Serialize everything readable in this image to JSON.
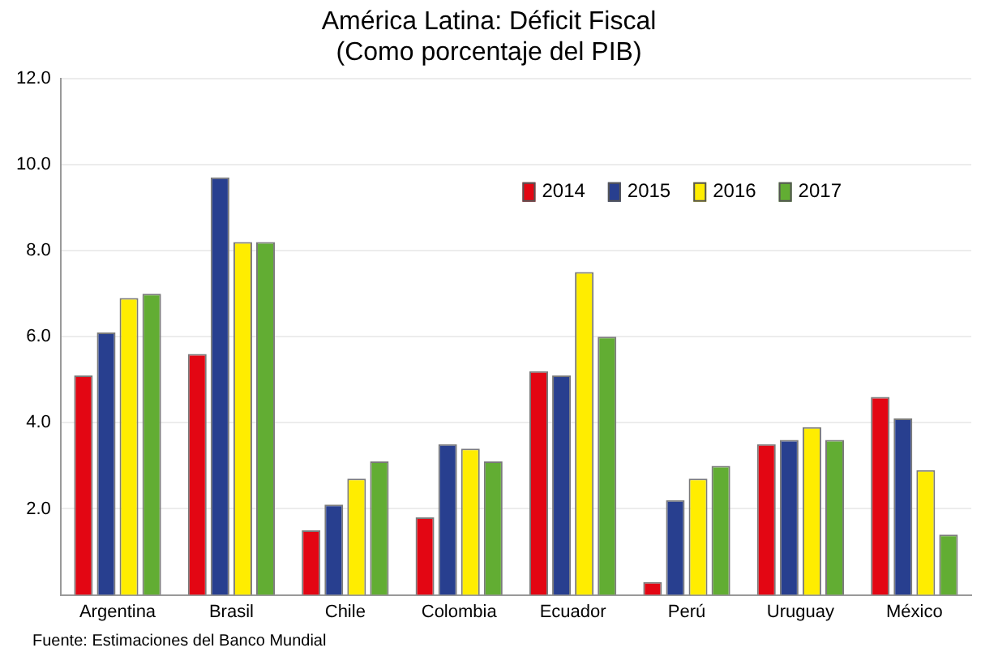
{
  "chart_data": {
    "type": "bar",
    "title": "América Latina: Déficit Fiscal",
    "subtitle": "(Como porcentaje del PIB)",
    "categories": [
      "Argentina",
      "Brasil",
      "Chile",
      "Colombia",
      "Ecuador",
      "Perú",
      "Uruguay",
      "México"
    ],
    "series": [
      {
        "name": "2014",
        "color": "#e30613",
        "values": [
          5.1,
          5.6,
          1.5,
          1.8,
          5.2,
          0.3,
          3.5,
          4.6
        ]
      },
      {
        "name": "2015",
        "color": "#283f8f",
        "values": [
          6.1,
          9.7,
          2.1,
          3.5,
          5.1,
          2.2,
          3.6,
          4.1
        ]
      },
      {
        "name": "2016",
        "color": "#ffed00",
        "values": [
          6.9,
          8.2,
          2.7,
          3.4,
          7.5,
          2.7,
          3.9,
          2.9
        ]
      },
      {
        "name": "2017",
        "color": "#62ad33",
        "values": [
          7.0,
          8.2,
          3.1,
          3.1,
          6.0,
          3.0,
          3.6,
          1.4
        ]
      }
    ],
    "ylim": [
      0,
      12
    ],
    "yticks": [
      {
        "value": 2,
        "label": "2.0"
      },
      {
        "value": 4,
        "label": "4.0"
      },
      {
        "value": 6,
        "label": "6.0"
      },
      {
        "value": 8,
        "label": "8.0"
      },
      {
        "value": 10,
        "label": "10.0"
      },
      {
        "value": 12,
        "label": "12.0"
      }
    ],
    "grid": "y",
    "legend": "top right",
    "annotations": [
      "Fuente: Estimaciones del Banco Mundial"
    ]
  }
}
